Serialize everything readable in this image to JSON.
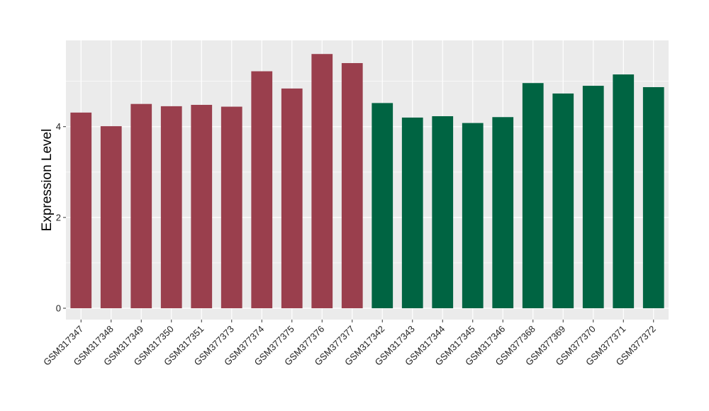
{
  "chart_data": {
    "type": "bar",
    "title": "",
    "xlabel": "",
    "ylabel": "Expression Level",
    "ylim": [
      -0.25,
      5.9
    ],
    "yticks": [
      0,
      2,
      4
    ],
    "grid": true,
    "legend": "none",
    "categories": [
      "GSM317347",
      "GSM317348",
      "GSM317349",
      "GSM317350",
      "GSM317351",
      "GSM377373",
      "GSM377374",
      "GSM377375",
      "GSM377376",
      "GSM377377",
      "GSM317342",
      "GSM317343",
      "GSM317344",
      "GSM317345",
      "GSM317346",
      "GSM377368",
      "GSM377369",
      "GSM377370",
      "GSM377371",
      "GSM377372"
    ],
    "values": [
      4.31,
      4.01,
      4.5,
      4.45,
      4.48,
      4.44,
      5.22,
      4.84,
      5.6,
      5.4,
      4.52,
      4.2,
      4.23,
      4.08,
      4.21,
      4.96,
      4.73,
      4.9,
      5.15,
      4.87
    ],
    "bar_colors": [
      "#9a3f4d",
      "#9a3f4d",
      "#9a3f4d",
      "#9a3f4d",
      "#9a3f4d",
      "#9a3f4d",
      "#9a3f4d",
      "#9a3f4d",
      "#9a3f4d",
      "#9a3f4d",
      "#006442",
      "#006442",
      "#006442",
      "#006442",
      "#006442",
      "#006442",
      "#006442",
      "#006442",
      "#006442",
      "#006442"
    ],
    "colors": {
      "panel_background": "#ebebeb",
      "grid_line": "#ffffff",
      "group_a": "#9a3f4d",
      "group_b": "#006442"
    }
  }
}
